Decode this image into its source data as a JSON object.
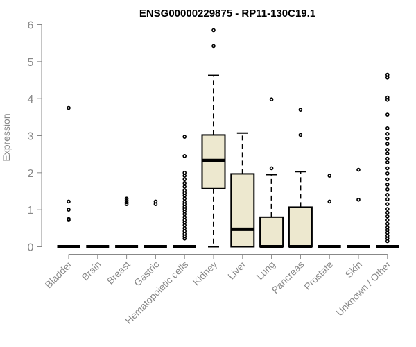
{
  "chart_data": {
    "type": "box",
    "title": "ENSG00000229875 - RP11-130C19.1",
    "xlabel": "",
    "ylabel": "Expression",
    "ylim": [
      0,
      6
    ],
    "yticks": [
      "0",
      "1",
      "2",
      "3",
      "4",
      "5",
      "6"
    ],
    "grid": false,
    "colors": {
      "box_fill": "#ede8cf",
      "stroke": "#000000",
      "axis": "#888888",
      "title": "#000000"
    },
    "categories": [
      "Bladder",
      "Brain",
      "Breast",
      "Gastric",
      "Hematopoietic cells",
      "Kidney",
      "Liver",
      "Lung",
      "Pancreas",
      "Prostate",
      "Skin",
      "Unknown / Other"
    ],
    "boxes": [
      {
        "name": "Bladder",
        "q1": 0,
        "median": 0,
        "q3": 0,
        "whisker_low": 0,
        "whisker_high": 0,
        "outliers": [
          3.75,
          1.22,
          1.0,
          0.75,
          0.72
        ]
      },
      {
        "name": "Brain",
        "q1": 0,
        "median": 0,
        "q3": 0,
        "whisker_low": 0,
        "whisker_high": 0,
        "outliers": []
      },
      {
        "name": "Breast",
        "q1": 0,
        "median": 0,
        "q3": 0,
        "whisker_low": 0,
        "whisker_high": 0,
        "outliers": [
          1.3,
          1.25,
          1.2,
          1.15
        ]
      },
      {
        "name": "Gastric",
        "q1": 0,
        "median": 0,
        "q3": 0,
        "whisker_low": 0,
        "whisker_high": 0,
        "outliers": [
          1.22,
          1.15
        ]
      },
      {
        "name": "Hematopoietic cells",
        "q1": 0,
        "median": 0,
        "q3": 0,
        "whisker_low": 0,
        "whisker_high": 0,
        "outliers": [
          2.97,
          2.45,
          2.0,
          1.92,
          1.82,
          1.72,
          1.62,
          1.52,
          1.45,
          1.38,
          1.3,
          1.22,
          1.15,
          1.08,
          1.02,
          0.95,
          0.88,
          0.8,
          0.72,
          0.65,
          0.58,
          0.5,
          0.42,
          0.35,
          0.28,
          0.22
        ]
      },
      {
        "name": "Kidney",
        "q1": 1.57,
        "median": 2.33,
        "q3": 3.02,
        "whisker_low": 0,
        "whisker_high": 4.63,
        "outliers": [
          5.85,
          5.42
        ]
      },
      {
        "name": "Liver",
        "q1": 0,
        "median": 0.47,
        "q3": 1.97,
        "whisker_low": 0,
        "whisker_high": 3.07,
        "outliers": []
      },
      {
        "name": "Lung",
        "q1": 0,
        "median": 0,
        "q3": 0.8,
        "whisker_low": 0,
        "whisker_high": 1.95,
        "outliers": [
          3.98,
          2.12
        ]
      },
      {
        "name": "Pancreas",
        "q1": 0,
        "median": 0,
        "q3": 1.07,
        "whisker_low": 0,
        "whisker_high": 2.03,
        "outliers": [
          3.7,
          3.02
        ]
      },
      {
        "name": "Prostate",
        "q1": 0,
        "median": 0,
        "q3": 0,
        "whisker_low": 0,
        "whisker_high": 0,
        "outliers": [
          1.92,
          1.22
        ]
      },
      {
        "name": "Skin",
        "q1": 0,
        "median": 0,
        "q3": 0,
        "whisker_low": 0,
        "whisker_high": 0,
        "outliers": [
          2.08,
          1.27
        ]
      },
      {
        "name": "Unknown / Other",
        "q1": 0,
        "median": 0,
        "q3": 0,
        "whisker_low": 0,
        "whisker_high": 0,
        "outliers": [
          4.65,
          4.57,
          4.03,
          3.97,
          3.57,
          3.2,
          3.05,
          2.92,
          2.78,
          2.62,
          2.52,
          2.38,
          2.28,
          2.12,
          1.98,
          1.82,
          1.68,
          1.55,
          1.4,
          1.28,
          1.15,
          1.02,
          0.92,
          0.82,
          0.72,
          0.62,
          0.52,
          0.45,
          0.38,
          0.3,
          0.22,
          0.15
        ]
      }
    ]
  }
}
